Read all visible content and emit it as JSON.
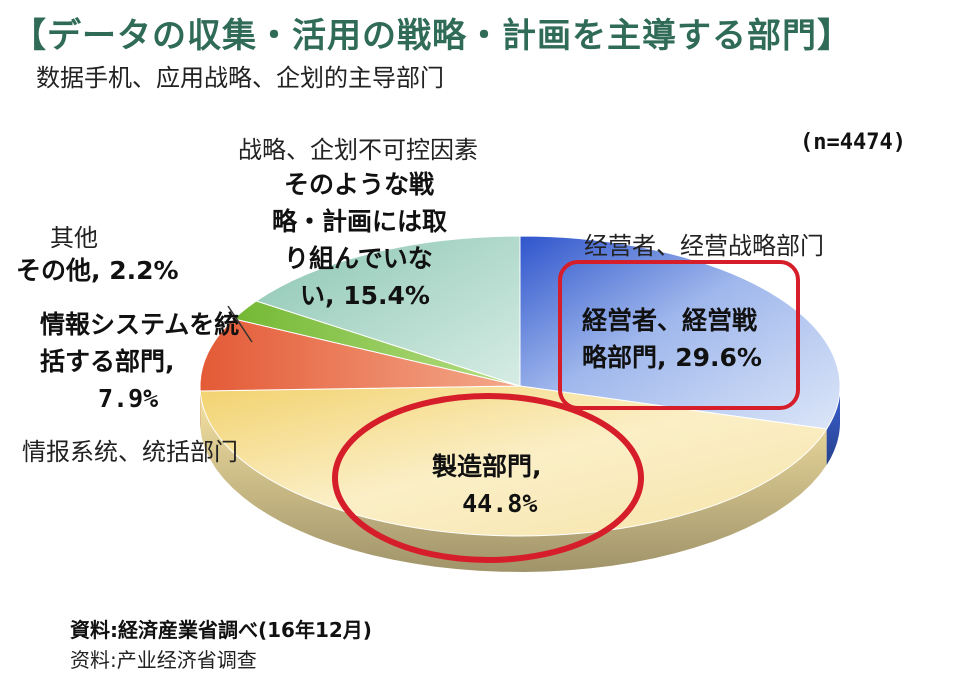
{
  "header": {
    "title": "【データの収集・活用の戦略・計画を主導する部門】",
    "subtitle": "数据手机、应用战略、企划的主导部门"
  },
  "sample_size": "(n=4474)",
  "labels": {
    "exec_zh": "经营者、经营战略部门",
    "exec_jp_line1": "経営者、経営戦",
    "exec_jp_line2": "略部門, 29.6%",
    "mfg_jp_line1": "製造部門,",
    "mfg_jp_line2": "44.8%",
    "is_zh": "情报系统、统括部门",
    "is_jp_line1": "情報システムを統",
    "is_jp_line2": "括する部門,",
    "is_jp_line3": "7.9%",
    "other_zh": "其他",
    "other_jp": "その他, 2.2%",
    "none_zh": "战略、企划不可控因素",
    "none_jp_line1": "そのような戦",
    "none_jp_line2": "略・計画には取",
    "none_jp_line3": "り組んでいな",
    "none_jp_line4": "い, 15.4%"
  },
  "footer": {
    "source_jp": "資料:経済産業省調べ(16年12月)",
    "source_zh": "资料:产业经济省调查"
  },
  "colors": {
    "title": "#2f6b57",
    "highlight": "#d61e2a",
    "exec": "#3b63d6",
    "mfg": "#f6e3a3",
    "is": "#e8744e",
    "other": "#86c440",
    "none": "#a8d3c5"
  },
  "chart_data": {
    "type": "pie",
    "title": "【データの収集・活用の戦略・計画を主導する部門】",
    "start_angle_deg": 0,
    "direction": "clockwise",
    "slices": [
      {
        "name": "経営者、経営戦略部門",
        "value": 29.6,
        "color": "#3b63d6"
      },
      {
        "name": "製造部門",
        "value": 44.8,
        "color": "#f6e3a3"
      },
      {
        "name": "情報システムを統括する部門",
        "value": 7.9,
        "color": "#e8744e"
      },
      {
        "name": "その他",
        "value": 2.2,
        "color": "#86c440"
      },
      {
        "name": "そのような戦略・計画には取り組んでいない",
        "value": 15.4,
        "color": "#a8d3c5"
      }
    ],
    "highlighted": [
      "経営者、経営戦略部門",
      "製造部門"
    ]
  }
}
